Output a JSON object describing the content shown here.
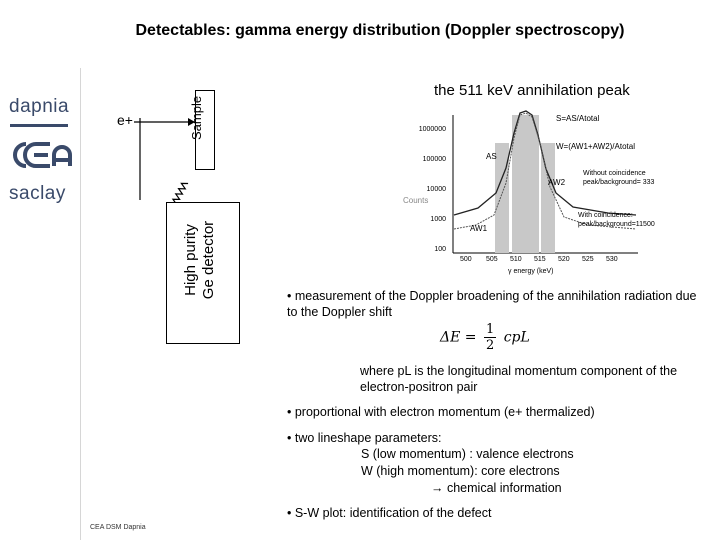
{
  "slide": {
    "title": "Detectables: gamma energy distribution (Doppler spectroscopy)",
    "footer": "CEA DSM Dapnia"
  },
  "logos": {
    "dapnia": "dapnia",
    "cea": "cea",
    "saclay": "saclay"
  },
  "setup": {
    "positron": "e+",
    "sample": "Sample",
    "detector_line1": "High purity",
    "detector_line2": "Ge detector"
  },
  "spectrum": {
    "title": "the 511 keV annihilation peak",
    "y_ticks": [
      "1000000",
      "100000",
      "10000",
      "1000",
      "100"
    ],
    "y_label": "Counts",
    "x_ticks": [
      "500",
      "505",
      "510",
      "515",
      "520",
      "525",
      "530"
    ],
    "x_label": "γ energy (keV)",
    "s_label": "AS",
    "w_label_1": "AW1",
    "w_label_2": "AW2",
    "s_formula": "S=AS/Atotal",
    "w_formula": "W=(AW1+AW2)/Atotal",
    "no_coinc_1": "Without coincidence",
    "no_coinc_2": "peak/background= 333",
    "with_coinc_1": "With coincidence:",
    "with_coinc_2": "peak/background=11500"
  },
  "bullets": {
    "b1": "• measurement of the Doppler broadening of the annihilation radiation due to the Doppler shift",
    "formula_left": "ΔE =",
    "formula_num": "1",
    "formula_den": "2",
    "formula_right": "cpL",
    "where": "where pL is the longitudinal momentum component of the electron-positron pair",
    "b2": "• proportional with electron momentum (e+ thermalized)",
    "b3": "• two lineshape parameters:",
    "b3a": "S (low momentum) : valence electrons",
    "b3b": "W (high momentum): core electrons",
    "b3c": "→ chemical information",
    "b4": "• S-W plot: identification of the defect"
  },
  "colors": {
    "logo": "#3a4a6a",
    "window": "#c8c8c8",
    "no_coinc_curve": "#222222",
    "with_coinc_curve": "#555555"
  }
}
